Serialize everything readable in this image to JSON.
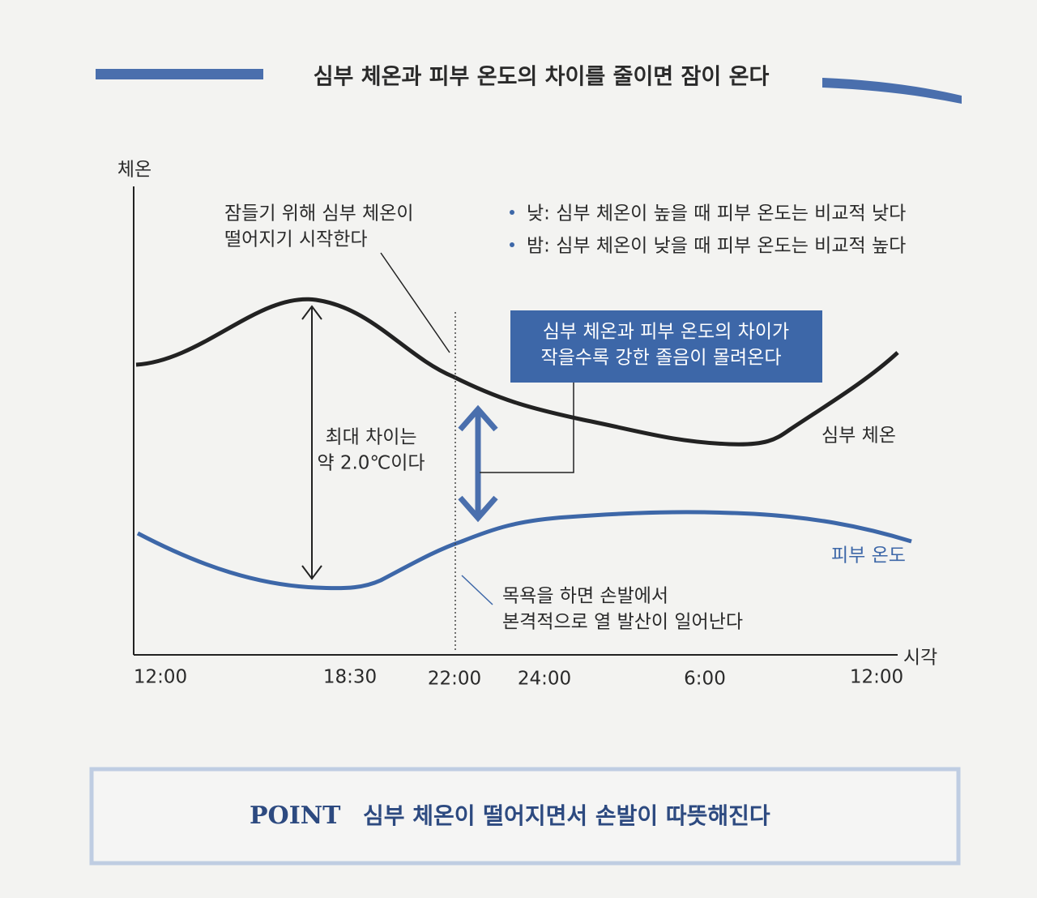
{
  "header": {
    "title": "심부 체온과 피부 온도의 차이를 줄이면 잠이 온다"
  },
  "chart": {
    "y_axis_label": "체온",
    "x_axis_label": "시각",
    "x_labels": [
      "12:00",
      "18:30",
      "22:00",
      "24:00",
      "6:00",
      "12:00"
    ],
    "curves": [
      "심부 체온",
      "피부 온도"
    ],
    "annotations": [
      "잠들기 위해 심부 체온이",
      "떨어지기 시작한다",
      "최대 차이는",
      "약 2.0℃이다",
      "목욕을 하면 손발에서",
      "본격적으로 열 발산이 일어난다"
    ],
    "notes": [
      "낮: 심부 체온이 높을 때 피부 온도는 비교적 낮다",
      "밤: 심부 체온이 낮을 때 피부 온도는 비교적 높다"
    ],
    "callout": [
      "심부 체온과 피부 온도의 차이가",
      "작을수록 강한 졸음이 몰려온다"
    ]
  },
  "point": {
    "label": "POINT",
    "text": "심부 체온이 떨어지면서 손발이 따뜻해진다"
  }
}
